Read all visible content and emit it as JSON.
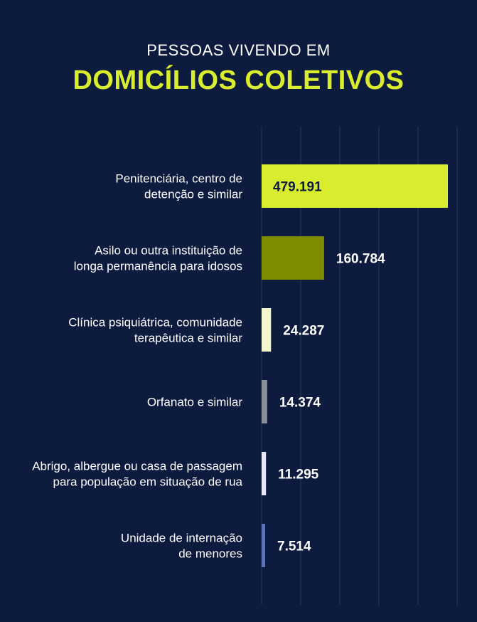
{
  "header": {
    "subtitle": "PESSOAS VIVENDO EM",
    "title": "DOMICÍLIOS COLETIVOS"
  },
  "colors": {
    "background": "#0d1b3e",
    "title": "#d9ec2e",
    "grid": "#2b3a5c"
  },
  "chart_data": {
    "type": "bar",
    "orientation": "horizontal",
    "grid": true,
    "categories": [
      [
        "Penitenciária, centro de",
        "detenção e similar"
      ],
      [
        "Asilo ou outra instituição de",
        "longa permanência para idosos"
      ],
      [
        "Clínica psiquiátrica, comunidade",
        "terapêutica e similar"
      ],
      [
        "Orfanato e similar"
      ],
      [
        "Abrigo, albergue ou casa de passagem",
        "para população em situação de rua"
      ],
      [
        "Unidade de internação",
        "de menores"
      ]
    ],
    "values": [
      479191,
      160784,
      24287,
      14374,
      11295,
      7514
    ],
    "value_labels": [
      "479.191",
      "160.784",
      "24.287",
      "14.374",
      "11.295",
      "7.514"
    ],
    "bar_colors": [
      "#d9ec2e",
      "#7f8c00",
      "#f2f7d0",
      "#8a8f9c",
      "#e6e8f7",
      "#5f72b8"
    ],
    "xlim": [
      0,
      500000
    ]
  }
}
